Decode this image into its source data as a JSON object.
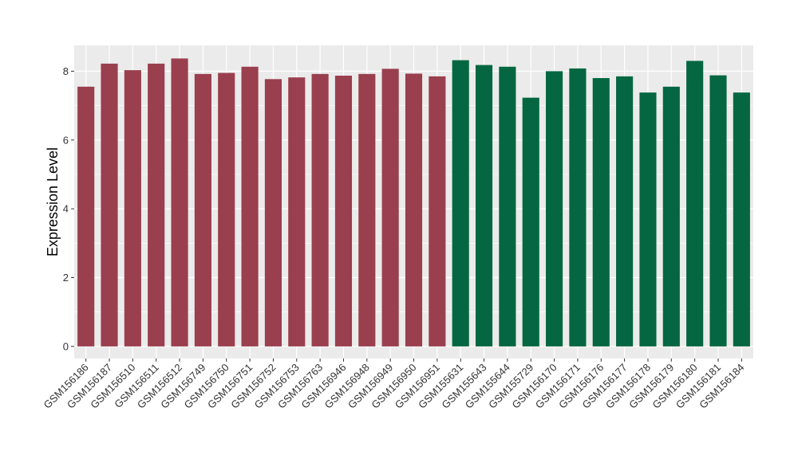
{
  "chart_data": {
    "type": "bar",
    "title": "",
    "xlabel": "",
    "ylabel": "Expression Level",
    "ylim": [
      -0.35,
      8.75
    ],
    "yticks": [
      0,
      2,
      4,
      6,
      8
    ],
    "grid": true,
    "legend": "none",
    "categories": [
      "GSM156186",
      "GSM156187",
      "GSM156510",
      "GSM156511",
      "GSM156512",
      "GSM156749",
      "GSM156750",
      "GSM156751",
      "GSM156752",
      "GSM156753",
      "GSM156763",
      "GSM156946",
      "GSM156948",
      "GSM156949",
      "GSM156950",
      "GSM156951",
      "GSM155631",
      "GSM155643",
      "GSM155644",
      "GSM155729",
      "GSM156170",
      "GSM156171",
      "GSM156176",
      "GSM156177",
      "GSM156178",
      "GSM156179",
      "GSM156180",
      "GSM156181",
      "GSM156184"
    ],
    "values": [
      7.55,
      8.22,
      8.03,
      8.22,
      8.37,
      7.92,
      7.95,
      8.13,
      7.77,
      7.82,
      7.92,
      7.87,
      7.92,
      8.07,
      7.93,
      7.85,
      8.32,
      8.18,
      8.13,
      7.23,
      8.0,
      8.08,
      7.8,
      7.85,
      7.38,
      7.55,
      8.3,
      7.88,
      7.38
    ],
    "groups": [
      0,
      0,
      0,
      0,
      0,
      0,
      0,
      0,
      0,
      0,
      0,
      0,
      0,
      0,
      0,
      0,
      1,
      1,
      1,
      1,
      1,
      1,
      1,
      1,
      1,
      1,
      1,
      1,
      1
    ],
    "group_colors": [
      "#9A3F4E",
      "#046741"
    ],
    "panel_color": "#EBEBEB",
    "grid_color": "#FFFFFF"
  }
}
